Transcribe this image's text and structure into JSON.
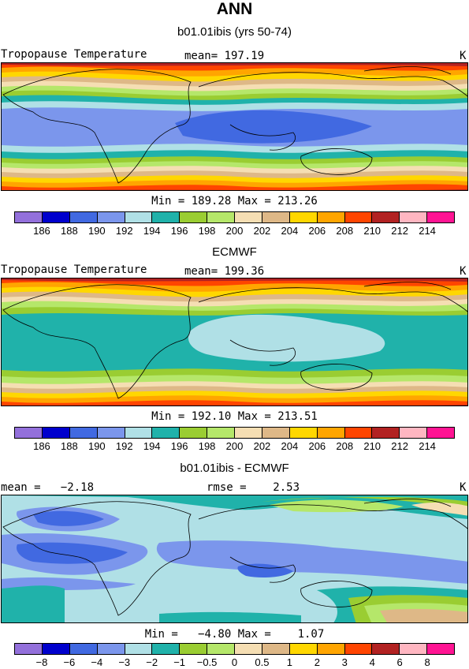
{
  "header": {
    "title": "ANN",
    "subtitle": "b01.01ibis (yrs 50-74)"
  },
  "panels": [
    {
      "left_label": "Tropopause Temperature",
      "center_label": "mean= 197.19",
      "right_label": "K",
      "minmax": "Min = 189.28 Max = 213.26",
      "ticks": [
        "186",
        "188",
        "190",
        "192",
        "194",
        "196",
        "198",
        "200",
        "202",
        "204",
        "206",
        "208",
        "210",
        "212",
        "214"
      ]
    },
    {
      "title": "ECMWF",
      "left_label": "Tropopause Temperature",
      "center_label": "mean= 199.36",
      "right_label": "K",
      "minmax": "Min = 192.10 Max = 213.51",
      "ticks": [
        "186",
        "188",
        "190",
        "192",
        "194",
        "196",
        "198",
        "200",
        "202",
        "204",
        "206",
        "208",
        "210",
        "212",
        "214"
      ]
    },
    {
      "title": "b01.01ibis - ECMWF",
      "left_label": "mean =   −2.18",
      "center_label": "rmse =    2.53",
      "right_label": "K",
      "minmax": "Min =   −4.80 Max =    1.07",
      "ticks": [
        "−8",
        "−6",
        "−4",
        "−3",
        "−2",
        "−1",
        "−0.5",
        "0",
        "0.5",
        "1",
        "2",
        "3",
        "4",
        "6",
        "8"
      ]
    }
  ],
  "colorbar_colors": [
    "#9370db",
    "#0000cd",
    "#4169e1",
    "#7b96ec",
    "#b0e0e6",
    "#20b2aa",
    "#9acd32",
    "#b5e76a",
    "#f5deb3",
    "#deb887",
    "#ffd700",
    "#ffa500",
    "#ff4500",
    "#b22222",
    "#ffb6c1",
    "#ff1493"
  ]
}
